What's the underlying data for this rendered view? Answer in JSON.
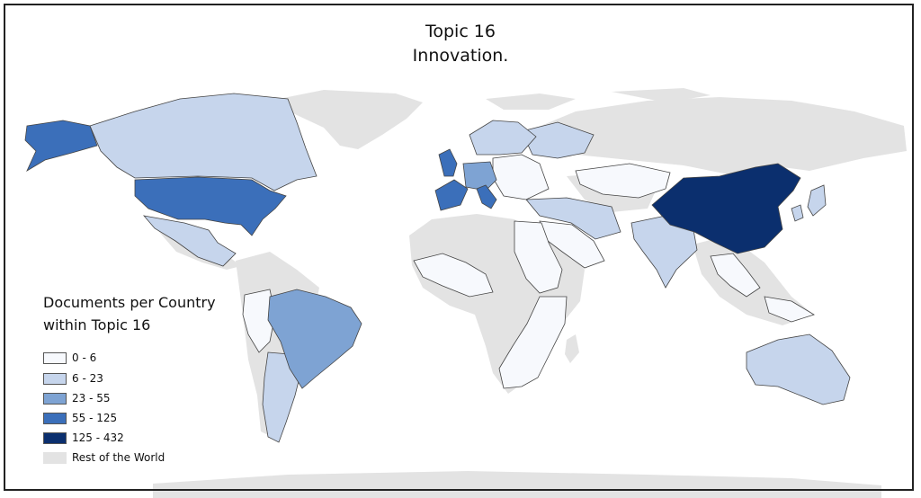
{
  "title": "Topic 16",
  "subtitle": "Innovation.",
  "legend": {
    "title_line1": "Documents per Country",
    "title_line2": "within Topic 16",
    "items": [
      {
        "label": "0 - 6",
        "color": "#f7f9fd"
      },
      {
        "label": "6 - 23",
        "color": "#c6d5ec"
      },
      {
        "label": "23 - 55",
        "color": "#7ea3d3"
      },
      {
        "label": "55 - 125",
        "color": "#3b6fba"
      },
      {
        "label": "125 - 432",
        "color": "#0b2f6e"
      },
      {
        "label": "Rest of the World",
        "color": "#e3e3e3"
      }
    ]
  },
  "colors": {
    "rest_of_world": "#e3e3e3",
    "border": "#444444"
  }
}
